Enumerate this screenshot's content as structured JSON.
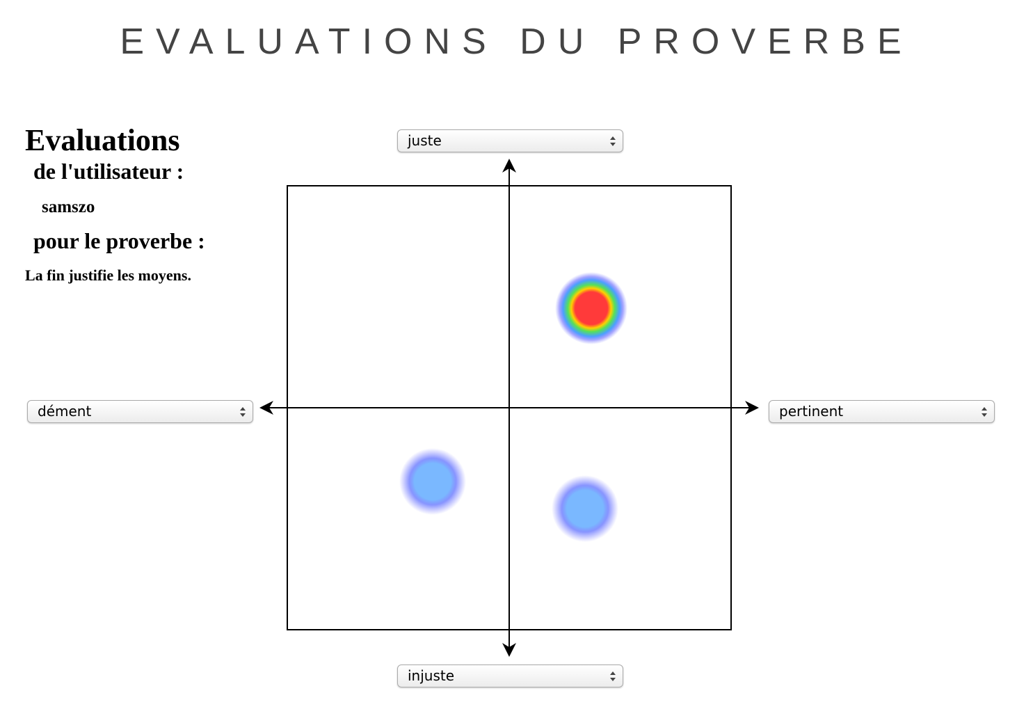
{
  "header": {
    "title": "EVALUATIONS DU PROVERBE"
  },
  "sidebar": {
    "heading": "Evaluations",
    "user_label": "de l'utilisateur :",
    "user": "samszo",
    "proverb_label": "pour le proverbe :",
    "proverb": "La fin justifie les moyens."
  },
  "selects": {
    "top": "juste",
    "left": "dément",
    "right": "pertinent",
    "bottom": "injuste"
  }
}
